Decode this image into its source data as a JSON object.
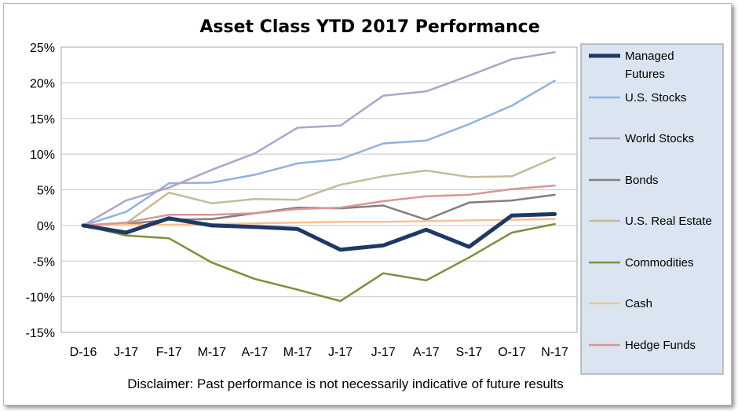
{
  "chart_data": {
    "type": "line",
    "title": "Asset Class YTD 2017 Performance",
    "xlabel": "",
    "ylabel": "",
    "categories": [
      "D-16",
      "J-17",
      "F-17",
      "M-17",
      "A-17",
      "M-17",
      "J-17",
      "J-17",
      "A-17",
      "S-17",
      "O-17",
      "N-17"
    ],
    "y_tick_labels": [
      "25%",
      "20%",
      "15%",
      "10%",
      "5%",
      "0%",
      "-5%",
      "-10%",
      "-15%"
    ],
    "y_ticks": [
      25,
      20,
      15,
      10,
      5,
      0,
      -5,
      -10,
      -15
    ],
    "ylim": [
      -15,
      25
    ],
    "grid": true,
    "legend_position": "right",
    "series": [
      {
        "name": "Managed Futures",
        "color": "#1f3864",
        "width": 5,
        "values": [
          0,
          -1.0,
          1.0,
          0.0,
          -0.2,
          -0.5,
          -3.4,
          -2.8,
          -0.6,
          -3.0,
          1.4,
          1.6
        ]
      },
      {
        "name": "U.S. Stocks",
        "color": "#8db3e2",
        "width": 2.5,
        "values": [
          0,
          1.9,
          5.9,
          6.0,
          7.1,
          8.7,
          9.3,
          11.5,
          11.9,
          14.2,
          16.8,
          20.3
        ]
      },
      {
        "name": "World Stocks",
        "color": "#b3a2c7",
        "width": 2.5,
        "values": [
          0,
          3.5,
          5.3,
          7.8,
          10.1,
          13.7,
          14.0,
          18.2,
          18.8,
          21.0,
          23.3,
          24.3
        ]
      },
      {
        "name": "Bonds",
        "color": "#7f7f7f",
        "width": 2.5,
        "values": [
          0,
          0.2,
          0.8,
          0.9,
          1.7,
          2.5,
          2.4,
          2.8,
          0.8,
          3.2,
          3.5,
          4.3
        ]
      },
      {
        "name": "U.S. Real Estate",
        "color": "#c4bd97",
        "width": 2.5,
        "values": [
          0,
          0.3,
          4.6,
          3.1,
          3.7,
          3.6,
          5.7,
          6.9,
          7.7,
          6.8,
          6.9,
          9.5
        ]
      },
      {
        "name": "Commodities",
        "color": "#76923c",
        "width": 2.5,
        "values": [
          0,
          -1.4,
          -1.8,
          -5.2,
          -7.5,
          -9.0,
          -10.6,
          -6.7,
          -7.7,
          -4.5,
          -1.0,
          0.2
        ]
      },
      {
        "name": "Cash",
        "color": "#fac090",
        "width": 2.5,
        "values": [
          0,
          0.1,
          0.1,
          0.2,
          0.3,
          0.4,
          0.5,
          0.5,
          0.6,
          0.7,
          0.8,
          0.9
        ]
      },
      {
        "name": "Hedge Funds",
        "color": "#d99694",
        "width": 2.5,
        "values": [
          0,
          0.4,
          1.5,
          1.5,
          1.7,
          2.3,
          2.5,
          3.4,
          4.1,
          4.3,
          5.1,
          5.6
        ]
      }
    ],
    "disclaimer": "Disclaimer: Past performance is not necessarily indicative of future results"
  }
}
